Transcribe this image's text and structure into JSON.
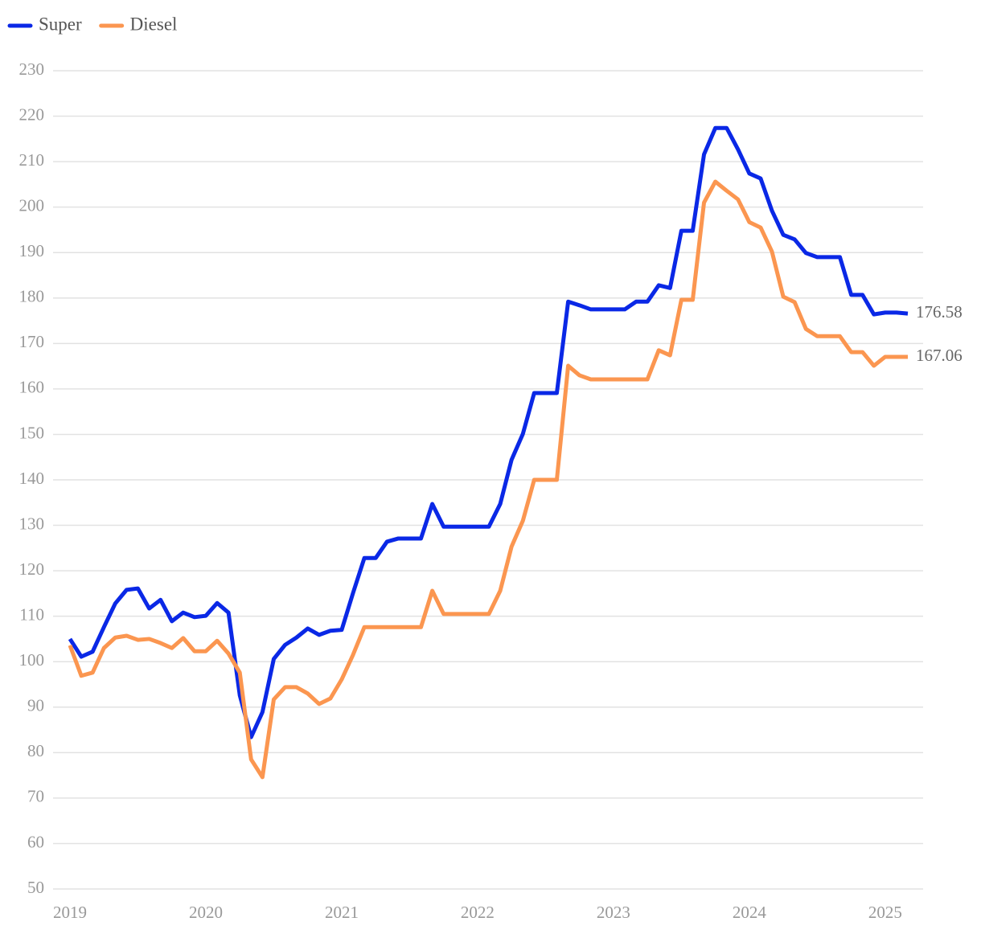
{
  "chart_data": {
    "type": "line",
    "categories": [
      "2019",
      null,
      null,
      null,
      null,
      null,
      null,
      null,
      null,
      null,
      null,
      null,
      "2020",
      null,
      null,
      null,
      null,
      null,
      null,
      null,
      null,
      null,
      null,
      null,
      "2021",
      null,
      null,
      null,
      null,
      null,
      null,
      null,
      null,
      null,
      null,
      null,
      "2022",
      null,
      null,
      null,
      null,
      null,
      null,
      null,
      null,
      null,
      null,
      null,
      "2023",
      null,
      null,
      null,
      null,
      null,
      null,
      null,
      null,
      null,
      null,
      null,
      "2024",
      null,
      null,
      null,
      null,
      null,
      null,
      null,
      null,
      null,
      null,
      null,
      "2025",
      null,
      null
    ],
    "series": [
      {
        "name": "Super",
        "color": "#0a28e6",
        "values": [
          105.0,
          101.1,
          102.2,
          107.6,
          112.8,
          115.8,
          116.1,
          111.7,
          113.6,
          108.9,
          110.8,
          109.8,
          110.1,
          112.9,
          110.8,
          92.6,
          83.4,
          88.9,
          100.6,
          103.7,
          105.3,
          107.3,
          105.9,
          106.8,
          107.0,
          115.1,
          122.8,
          122.8,
          126.4,
          127.1,
          127.1,
          127.1,
          134.7,
          129.7,
          129.7,
          129.7,
          129.7,
          129.7,
          134.7,
          144.4,
          150.1,
          159.1,
          159.1,
          159.1,
          179.2,
          178.4,
          177.5,
          177.5,
          177.5,
          177.5,
          179.2,
          179.2,
          182.8,
          182.2,
          194.8,
          194.8,
          211.6,
          217.4,
          217.4,
          212.7,
          207.4,
          206.3,
          199.2,
          193.9,
          192.9,
          189.9,
          189.0,
          189.0,
          189.0,
          180.7,
          180.7,
          176.4,
          176.8,
          176.8,
          176.58
        ]
      },
      {
        "name": "Diesel",
        "color": "#fb9650",
        "values": [
          103.6,
          96.9,
          97.6,
          103.0,
          105.3,
          105.7,
          104.8,
          105.0,
          104.1,
          103.0,
          105.2,
          102.3,
          102.3,
          104.6,
          101.8,
          97.6,
          78.5,
          74.6,
          91.7,
          94.4,
          94.4,
          93.0,
          90.7,
          91.9,
          96.1,
          101.5,
          107.6,
          107.6,
          107.6,
          107.6,
          107.6,
          107.6,
          115.6,
          110.5,
          110.5,
          110.5,
          110.5,
          110.5,
          115.6,
          125.3,
          131.0,
          140.0,
          140.0,
          140.0,
          165.1,
          163.0,
          162.1,
          162.1,
          162.1,
          162.1,
          162.1,
          162.1,
          168.5,
          167.4,
          179.6,
          179.6,
          201.0,
          205.6,
          203.6,
          201.7,
          196.7,
          195.5,
          190.2,
          180.3,
          179.1,
          173.2,
          171.6,
          171.6,
          171.6,
          168.1,
          168.1,
          165.1,
          167.06,
          167.06,
          167.06
        ]
      }
    ],
    "ylim": [
      50,
      230
    ],
    "yticks": [
      50,
      60,
      70,
      80,
      90,
      100,
      110,
      120,
      130,
      140,
      150,
      160,
      170,
      180,
      190,
      200,
      210,
      220,
      230
    ],
    "grid": true,
    "legend": "top-left"
  }
}
